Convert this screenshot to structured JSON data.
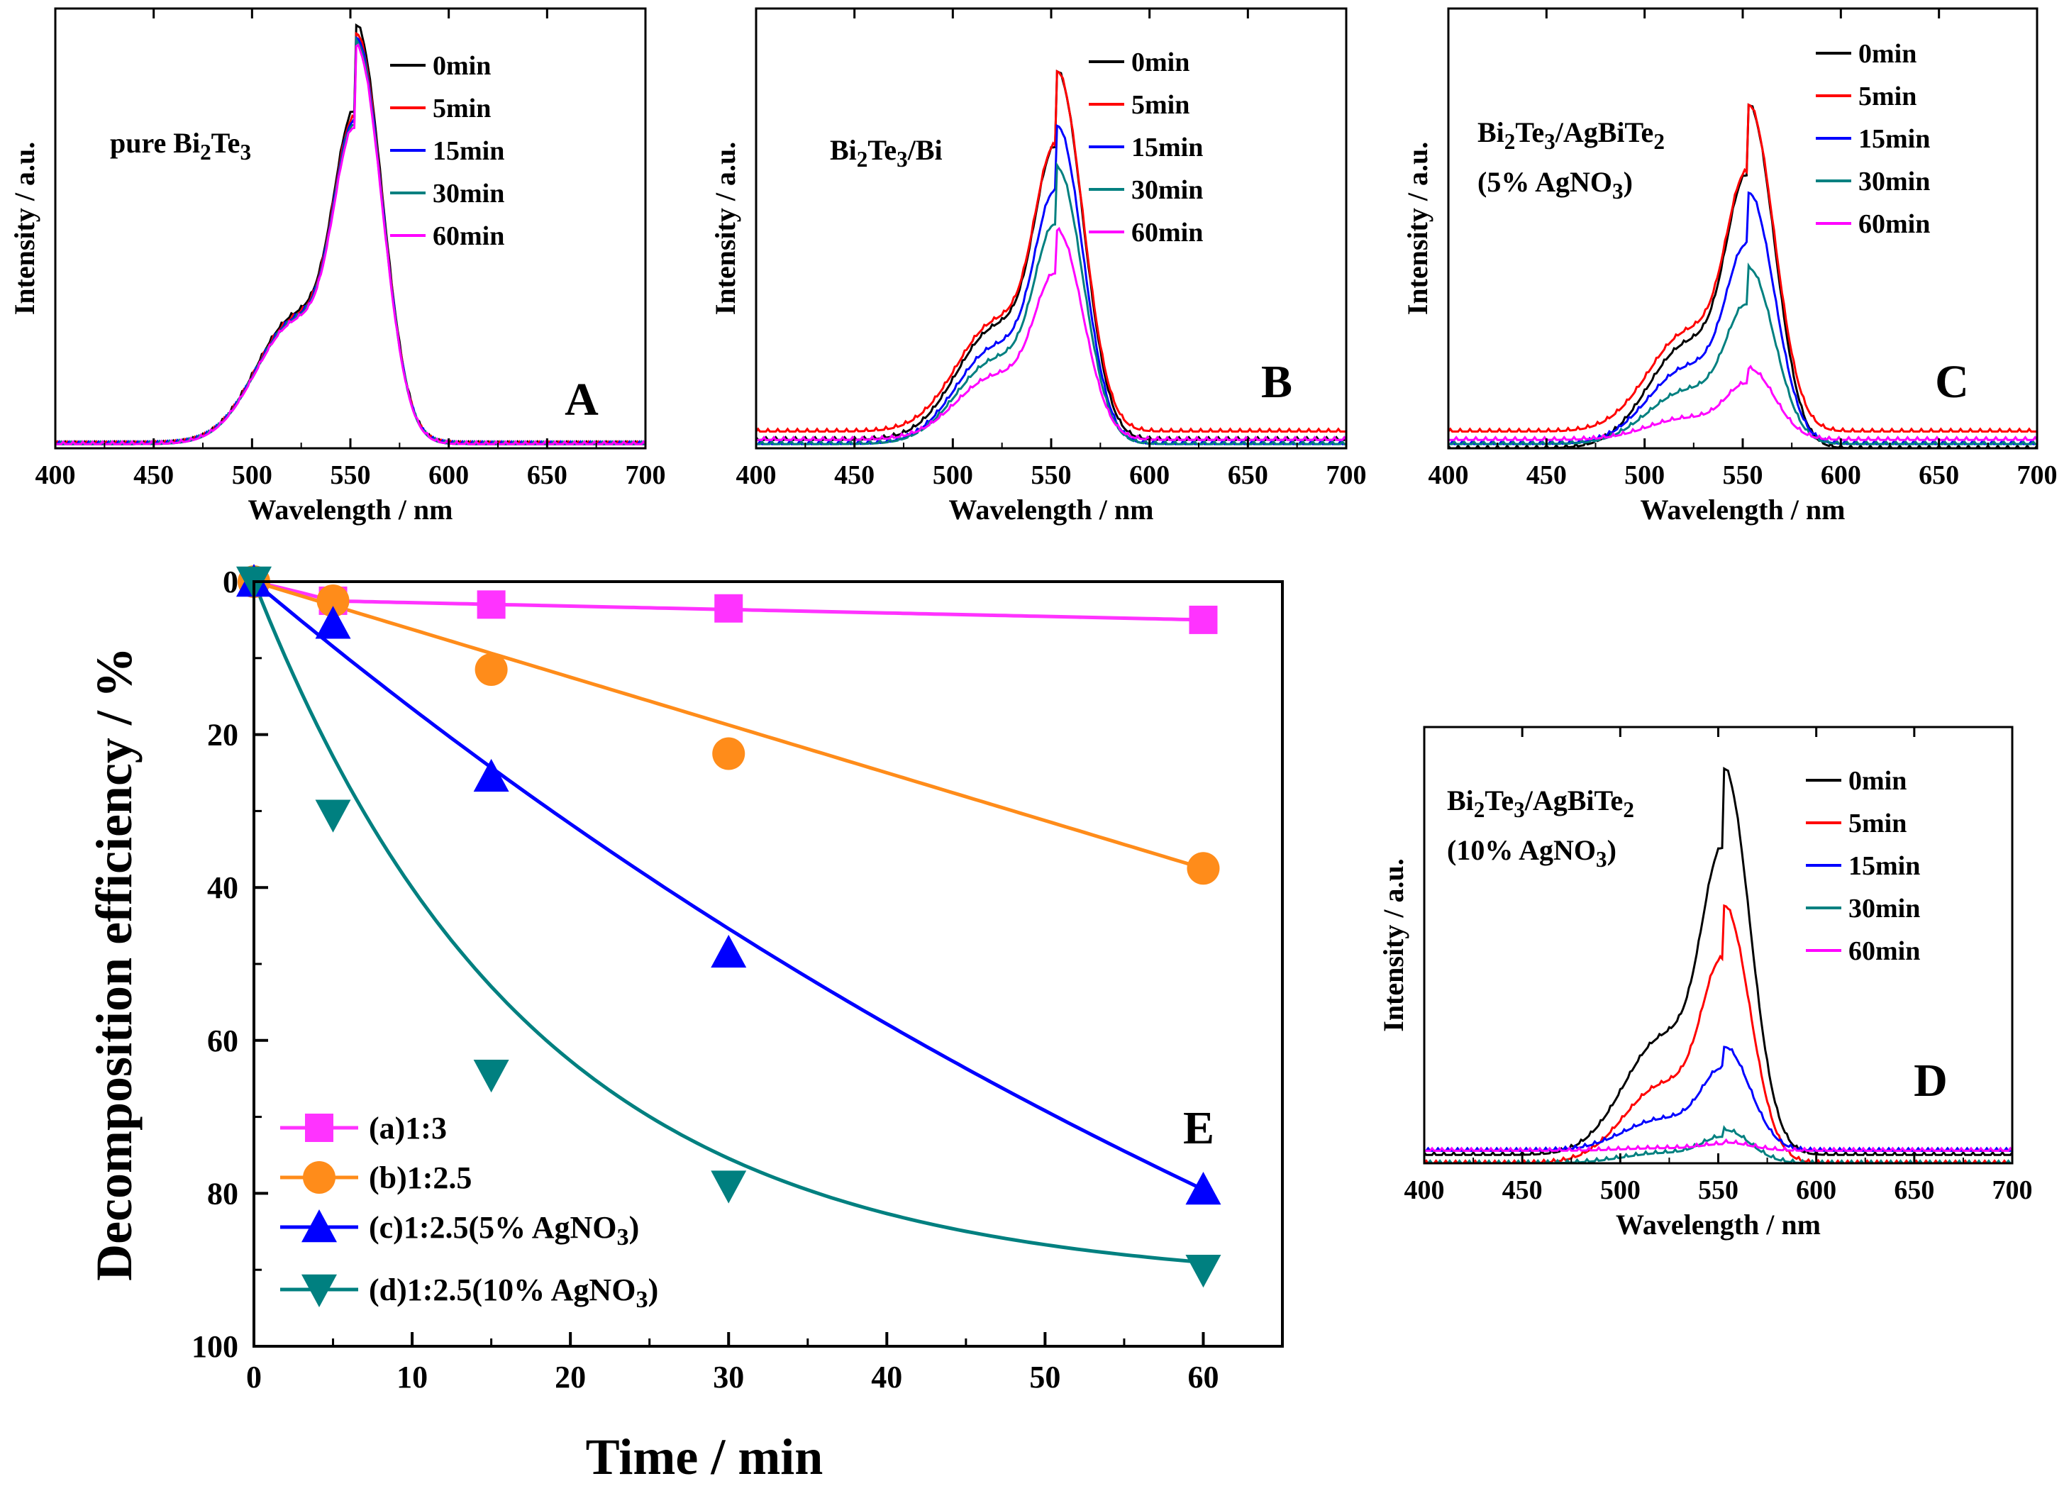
{
  "chart_data": [
    {
      "panel": "A",
      "type": "line",
      "sample_label": {
        "main": "pure Bi",
        "parts": [
          "pure Bi",
          "2",
          "Te",
          "3"
        ]
      },
      "xlabel": "Wavelength / nm",
      "ylabel": "Intensity / a.u.",
      "xlim": [
        400,
        700
      ],
      "ylim": [
        0,
        1.05
      ],
      "x_ticks": [
        "400",
        "450",
        "500",
        "550",
        "600",
        "650",
        "700"
      ],
      "series": [
        {
          "name": "0min",
          "color": "#000000",
          "peak": 1.0,
          "baseline": 0.01
        },
        {
          "name": "5min",
          "color": "#ff0000",
          "peak": 0.98,
          "baseline": 0.01
        },
        {
          "name": "15min",
          "color": "#0000ff",
          "peak": 0.97,
          "baseline": 0.01
        },
        {
          "name": "30min",
          "color": "#008080",
          "peak": 0.96,
          "baseline": 0.01
        },
        {
          "name": "60min",
          "color": "#ff00ff",
          "peak": 0.95,
          "baseline": 0.01
        }
      ]
    },
    {
      "panel": "B",
      "type": "line",
      "sample_label": {
        "parts": [
          "Bi",
          "2",
          "Te",
          "3",
          "/Bi"
        ]
      },
      "xlabel": "Wavelength / nm",
      "ylabel": "Intensity / a.u.",
      "xlim": [
        400,
        700
      ],
      "ylim": [
        0,
        1.05
      ],
      "x_ticks": [
        "400",
        "450",
        "500",
        "550",
        "600",
        "650",
        "700"
      ],
      "series": [
        {
          "name": "0min",
          "color": "#000000",
          "peak": 0.88,
          "baseline": 0.02
        },
        {
          "name": "5min",
          "color": "#ff0000",
          "peak": 0.86,
          "baseline": 0.04
        },
        {
          "name": "15min",
          "color": "#0000ff",
          "peak": 0.76,
          "baseline": 0.01
        },
        {
          "name": "30min",
          "color": "#008080",
          "peak": 0.66,
          "baseline": 0.01
        },
        {
          "name": "60min",
          "color": "#ff00ff",
          "peak": 0.5,
          "baseline": 0.02
        }
      ]
    },
    {
      "panel": "C",
      "type": "line",
      "sample_label": {
        "parts": [
          "Bi",
          "2",
          "Te",
          "3",
          "/AgBiTe",
          "2"
        ],
        "line2_parts": [
          "(5% AgNO",
          "3",
          ")"
        ]
      },
      "xlabel": "Wavelength / nm",
      "ylabel": "Intensity / a.u.",
      "xlim": [
        400,
        700
      ],
      "ylim": [
        0,
        1.05
      ],
      "x_ticks": [
        "400",
        "450",
        "500",
        "550",
        "600",
        "650",
        "700"
      ],
      "series": [
        {
          "name": "0min",
          "color": "#000000",
          "peak": 0.82,
          "baseline": 0.0
        },
        {
          "name": "5min",
          "color": "#ff0000",
          "peak": 0.78,
          "baseline": 0.04
        },
        {
          "name": "15min",
          "color": "#0000ff",
          "peak": 0.6,
          "baseline": 0.01
        },
        {
          "name": "30min",
          "color": "#008080",
          "peak": 0.42,
          "baseline": 0.01
        },
        {
          "name": "60min",
          "color": "#ff00ff",
          "peak": 0.17,
          "baseline": 0.02
        }
      ]
    },
    {
      "panel": "D",
      "type": "line",
      "sample_label": {
        "parts": [
          "Bi",
          "2",
          "Te",
          "3",
          "/AgBiTe",
          "2"
        ],
        "line2_parts": [
          "(10% AgNO",
          "3",
          ")"
        ]
      },
      "xlabel": "Wavelength / nm",
      "ylabel": "Intensity / a.u.",
      "xlim": [
        400,
        700
      ],
      "ylim": [
        0,
        1.05
      ],
      "x_ticks": [
        "400",
        "450",
        "500",
        "550",
        "600",
        "650",
        "700"
      ],
      "series": [
        {
          "name": "0min",
          "color": "#000000",
          "peak": 0.93,
          "baseline": 0.02
        },
        {
          "name": "5min",
          "color": "#ff0000",
          "peak": 0.62,
          "baseline": 0.0
        },
        {
          "name": "15min",
          "color": "#0000ff",
          "peak": 0.25,
          "baseline": 0.03
        },
        {
          "name": "30min",
          "color": "#008080",
          "peak": 0.08,
          "baseline": 0.0
        },
        {
          "name": "60min",
          "color": "#ff00ff",
          "peak": 0.02,
          "baseline": 0.03
        }
      ]
    },
    {
      "panel": "E",
      "type": "line",
      "xlabel": "Time / min",
      "ylabel": "Decomposition efficiency / %",
      "xlim": [
        0,
        65
      ],
      "ylim": [
        0,
        100
      ],
      "y_inverted": true,
      "x_ticks": [
        "0",
        "10",
        "20",
        "30",
        "40",
        "50",
        "60"
      ],
      "y_ticks": [
        "0",
        "20",
        "40",
        "60",
        "80",
        "100"
      ],
      "x": [
        0,
        5,
        15,
        30,
        60
      ],
      "series": [
        {
          "name": "(a)1:3",
          "legend_parts": [
            "(a)1:3"
          ],
          "color": "#ff33ff",
          "marker": "square",
          "values": [
            0,
            2.5,
            3,
            3.5,
            5
          ]
        },
        {
          "name": "(b)1:2.5",
          "legend_parts": [
            "(b)1:2.5"
          ],
          "color": "#ff8c1a",
          "marker": "circle",
          "values": [
            0,
            2.5,
            11.5,
            22.5,
            37.5
          ]
        },
        {
          "name": "(c)1:2.5(5% AgNO3)",
          "legend_parts": [
            "(c)1:2.5(5% AgNO",
            "3",
            ")"
          ],
          "color": "#0000ff",
          "marker": "triangle-up",
          "values": [
            0,
            5.5,
            25.5,
            48.5,
            79.5
          ]
        },
        {
          "name": "(d)1:2.5(10% AgNO3)",
          "legend_parts": [
            "(d)1:2.5(10% AgNO",
            "3",
            ")"
          ],
          "color": "#008080",
          "marker": "triangle-down",
          "values": [
            0,
            30.5,
            64.5,
            79,
            90
          ]
        }
      ]
    }
  ]
}
